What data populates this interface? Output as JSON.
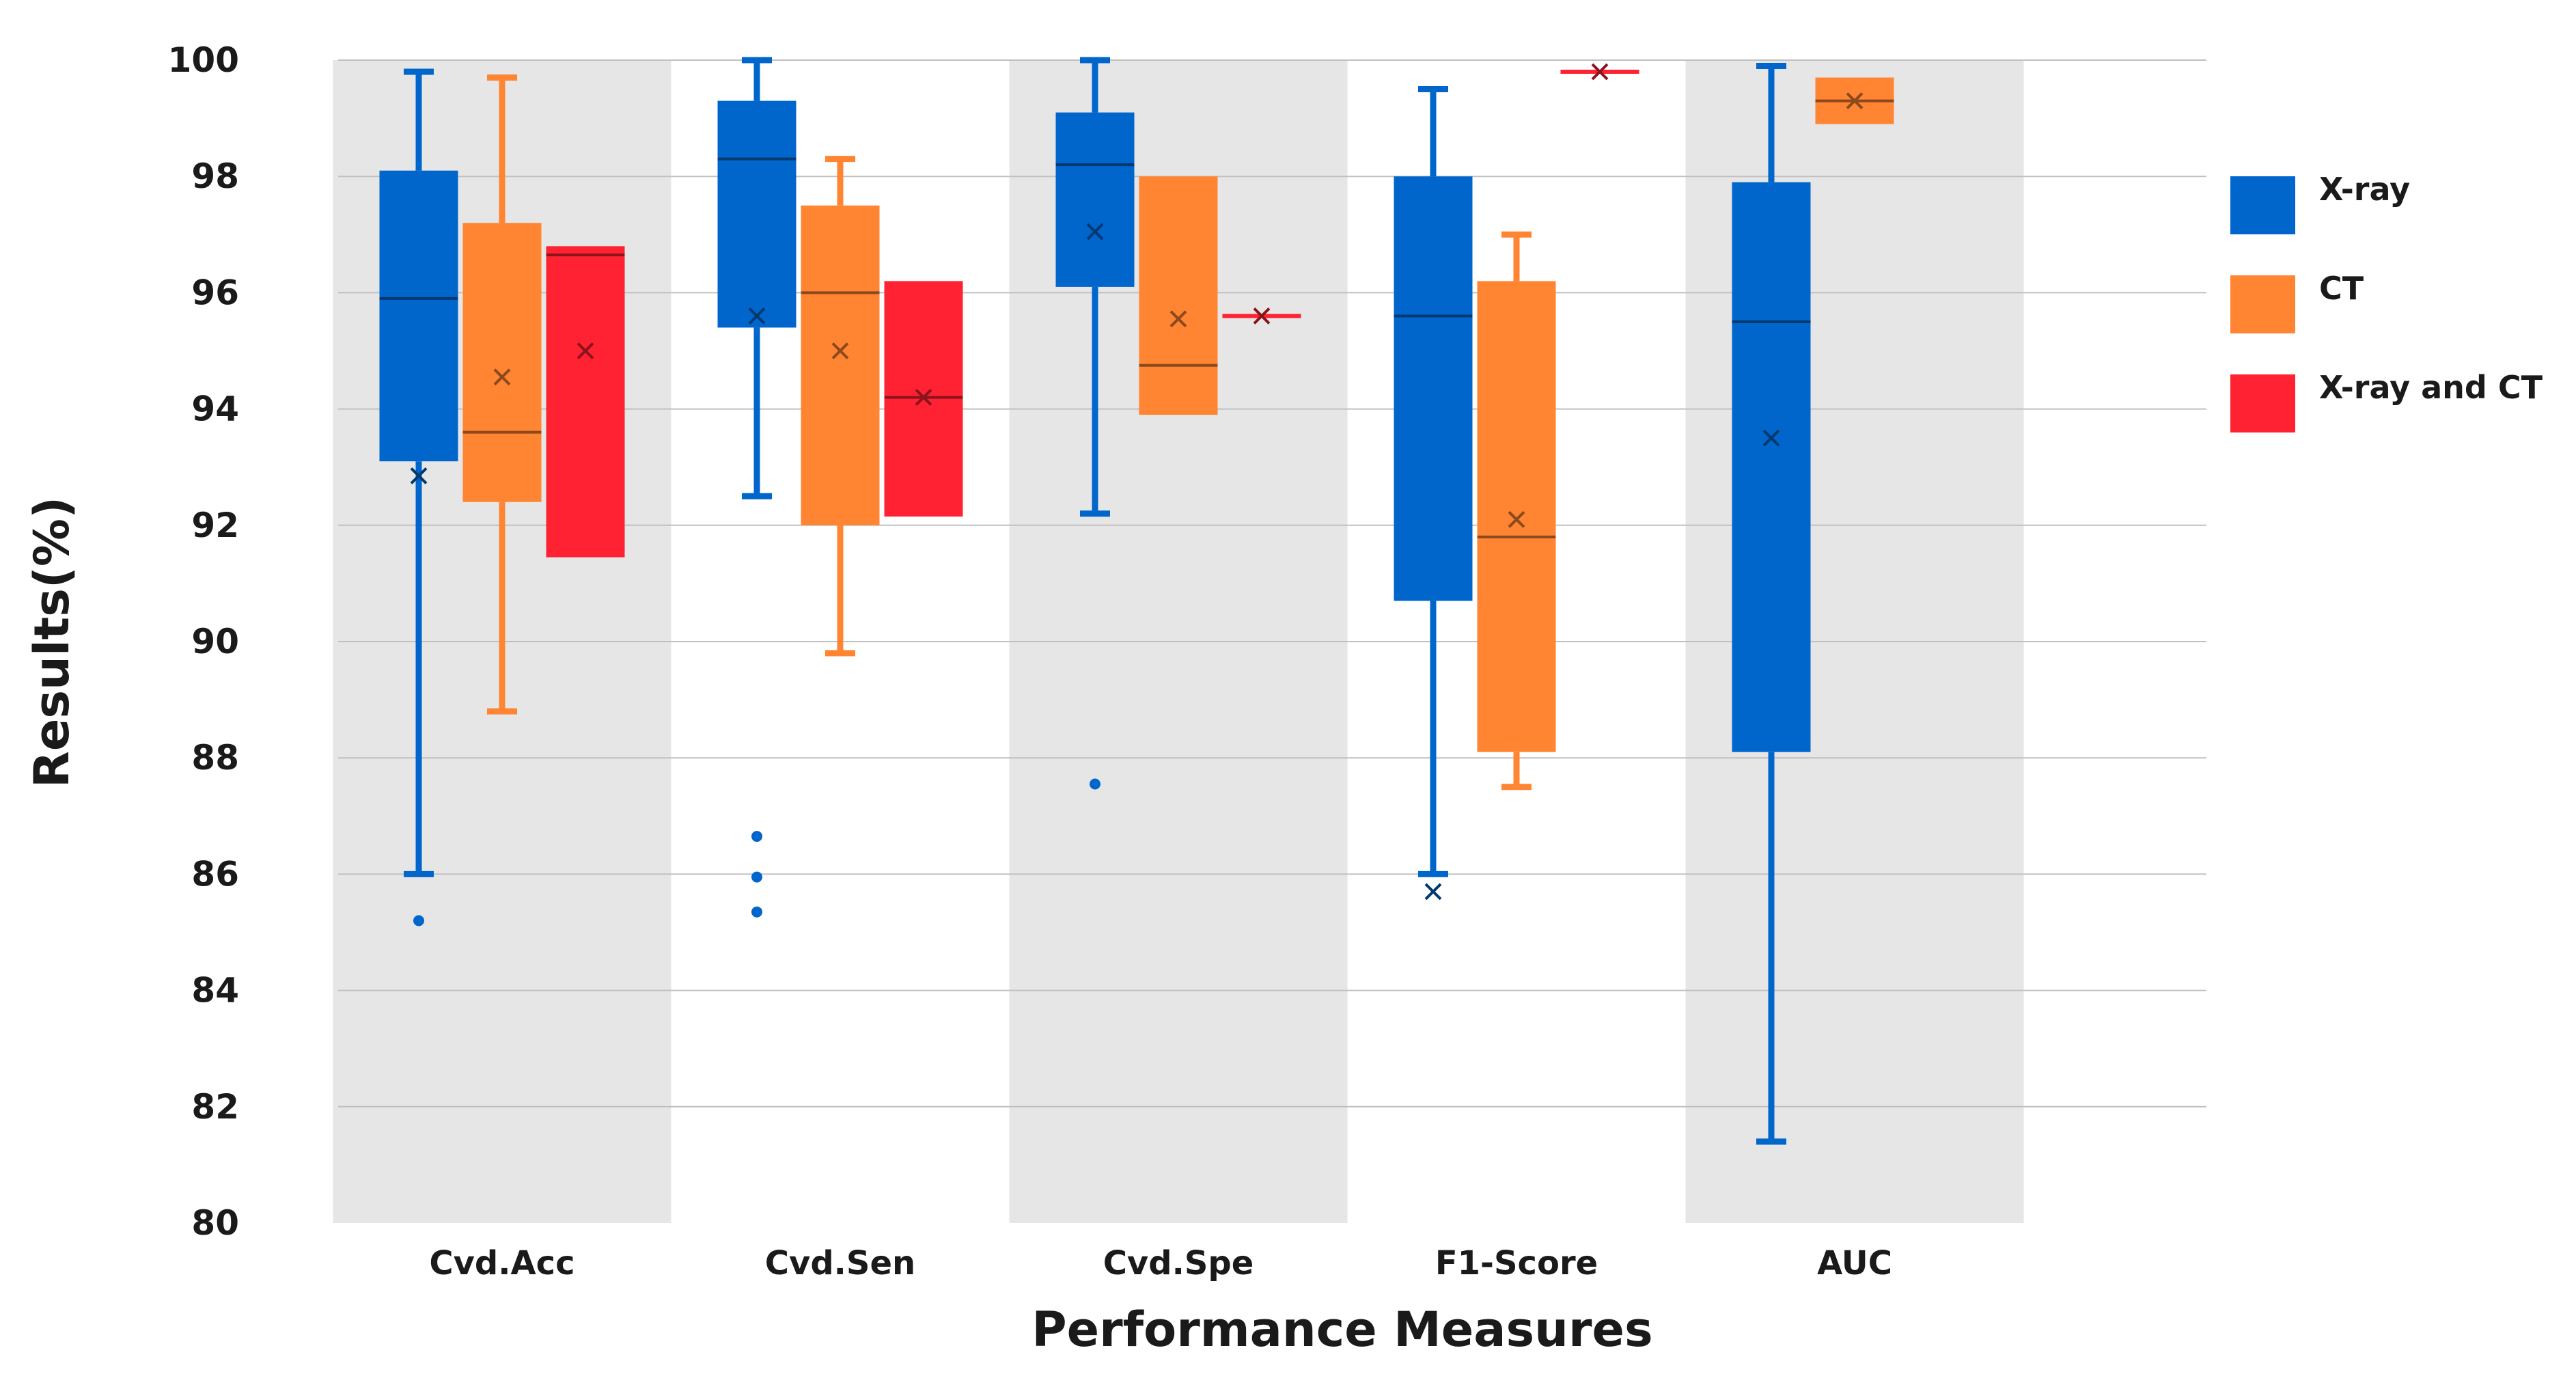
{
  "chart_data": {
    "type": "box",
    "xlabel": "Performance Measures",
    "ylabel": "Results(%)",
    "ylim": [
      80,
      100
    ],
    "yticks": [
      80,
      82,
      84,
      86,
      88,
      90,
      92,
      94,
      96,
      98,
      100
    ],
    "grid": true,
    "legend_position": "right",
    "categories": [
      "Cvd.Acc",
      "Cvd.Sen",
      "Cvd.Spe",
      "F1-Score",
      "AUC"
    ],
    "shaded_categories": [
      0,
      2,
      4
    ],
    "series": [
      {
        "name": "X-ray",
        "color": "#0066cc",
        "boxes": [
          {
            "min": 86.0,
            "q1": 93.1,
            "median": 95.9,
            "q3": 98.1,
            "max": 99.8,
            "mean": 92.85,
            "outliers": [
              85.2
            ]
          },
          {
            "min": 92.5,
            "q1": 95.4,
            "median": 98.3,
            "q3": 99.3,
            "max": 100.0,
            "mean": 95.6,
            "outliers": [
              86.65,
              85.95,
              85.35
            ]
          },
          {
            "min": 92.2,
            "q1": 96.1,
            "median": 98.2,
            "q3": 99.1,
            "max": 100.0,
            "mean": 97.05,
            "outliers": [
              87.55
            ]
          },
          {
            "min": 86.0,
            "q1": 90.7,
            "median": 95.6,
            "q3": 98.0,
            "max": 99.5,
            "mean": 85.7,
            "outliers": []
          },
          {
            "min": 81.4,
            "q1": 88.1,
            "median": 95.5,
            "q3": 97.9,
            "max": 99.9,
            "mean": 93.5,
            "outliers": []
          }
        ]
      },
      {
        "name": "CT",
        "color": "#ff8533",
        "boxes": [
          {
            "min": 88.8,
            "q1": 92.4,
            "median": 93.6,
            "q3": 97.2,
            "max": 99.7,
            "mean": 94.55,
            "outliers": []
          },
          {
            "min": 89.8,
            "q1": 92.0,
            "median": 96.0,
            "q3": 97.5,
            "max": 98.3,
            "mean": 95.0,
            "outliers": []
          },
          {
            "min": 93.9,
            "q1": 93.9,
            "median": 94.75,
            "q3": 98.0,
            "max": 98.0,
            "mean": 95.55,
            "outliers": []
          },
          {
            "min": 87.5,
            "q1": 88.1,
            "median": 91.8,
            "q3": 96.2,
            "max": 97.0,
            "mean": 92.1,
            "outliers": []
          },
          {
            "min": 98.9,
            "q1": 98.9,
            "median": 99.3,
            "q3": 99.7,
            "max": 99.7,
            "mean": 99.3,
            "outliers": []
          }
        ]
      },
      {
        "name": "X-ray and CT",
        "color": "#ff2233",
        "boxes": [
          {
            "min": 91.45,
            "q1": 91.45,
            "median": 96.65,
            "q3": 96.8,
            "max": 96.8,
            "mean": 95.0,
            "outliers": []
          },
          {
            "min": 92.15,
            "q1": 92.15,
            "median": 94.2,
            "q3": 96.2,
            "max": 96.2,
            "mean": 94.2,
            "outliers": []
          },
          {
            "min": 95.6,
            "q1": 95.6,
            "median": 95.6,
            "q3": 95.6,
            "max": 95.6,
            "mean": 95.6,
            "outliers": []
          },
          {
            "min": 99.8,
            "q1": 99.8,
            "median": 99.8,
            "q3": 99.8,
            "max": 99.8,
            "mean": 99.8,
            "outliers": []
          },
          null
        ]
      }
    ]
  }
}
